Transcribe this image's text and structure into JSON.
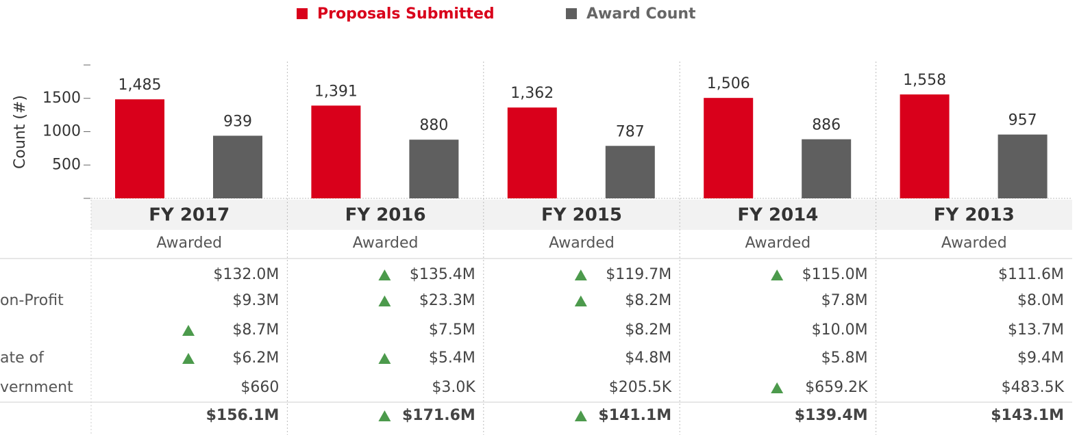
{
  "chart_data": {
    "type": "bar",
    "y_label": "Count (#)",
    "categories": [
      "FY 2017",
      "FY 2016",
      "FY 2015",
      "FY 2014",
      "FY 2013"
    ],
    "series": [
      {
        "name": "Proposals Submitted",
        "color": "#d9001b",
        "values": [
          1485,
          1391,
          1362,
          1506,
          1558
        ],
        "value_labels": [
          "1,485",
          "1,391",
          "1,362",
          "1,506",
          "1,558"
        ]
      },
      {
        "name": "Award Count",
        "color": "#5f5f5f",
        "values": [
          939,
          880,
          787,
          886,
          957
        ]
      }
    ],
    "ylim": [
      0,
      2000
    ],
    "yticks": [
      500,
      1000,
      1500
    ]
  },
  "table": {
    "column_headers": [
      "Awarded",
      "Awarded",
      "Awarded",
      "Awarded",
      "Awarded"
    ],
    "rows": [
      {
        "cells": [
          "$132.0M",
          "$135.4M",
          "$119.7M",
          "$115.0M",
          "$111.6M"
        ],
        "up": [
          false,
          true,
          true,
          true,
          false
        ]
      },
      {
        "label": "on-Profit",
        "cells": [
          "$9.3M",
          "$23.3M",
          "$8.2M",
          "$7.8M",
          "$8.0M"
        ],
        "up": [
          false,
          true,
          true,
          false,
          false
        ]
      },
      {
        "cells": [
          "$8.7M",
          "$7.5M",
          "$8.2M",
          "$10.0M",
          "$13.7M"
        ],
        "up": [
          true,
          false,
          false,
          false,
          false
        ]
      },
      {
        "label": "ate of",
        "cells": [
          "$6.2M",
          "$5.4M",
          "$4.8M",
          "$5.8M",
          "$9.4M"
        ],
        "up": [
          true,
          true,
          false,
          false,
          false
        ]
      },
      {
        "label": "vernment",
        "cells": [
          "$660",
          "$3.0K",
          "$205.5K",
          "$659.2K",
          "$483.5K"
        ],
        "up": [
          false,
          false,
          false,
          true,
          false
        ]
      }
    ],
    "total": {
      "cells": [
        "$156.1M",
        "$171.6M",
        "$141.1M",
        "$139.4M",
        "$143.1M"
      ],
      "up": [
        false,
        true,
        true,
        false,
        false
      ]
    }
  }
}
